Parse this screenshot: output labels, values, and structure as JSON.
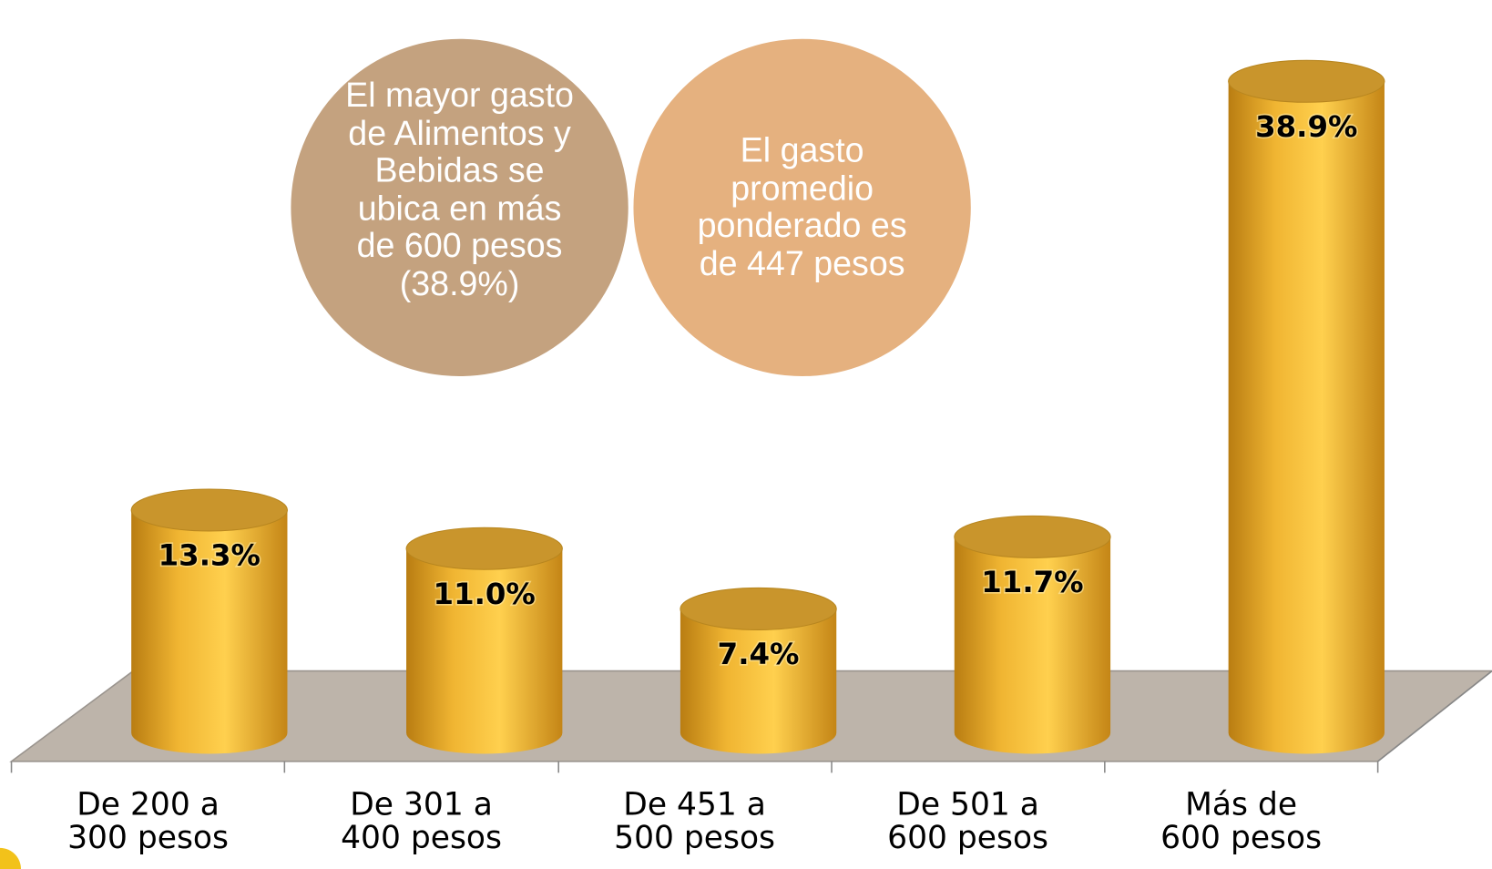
{
  "chart_data": {
    "type": "cylinder-bar",
    "categories": [
      "De 200 a 300 pesos",
      "De 301 a 400 pesos",
      "De 451 a 500 pesos",
      "De 501 a 600 pesos",
      "Más de 600 pesos"
    ],
    "values": [
      13.3,
      11.0,
      7.4,
      11.7,
      38.9
    ],
    "value_labels": [
      "13.3%",
      "11.0%",
      "7.4%",
      "11.7%",
      "38.9%"
    ],
    "color": "#f2b330",
    "annotations": [
      "El mayor gasto de Alimentos y Bebidas se ubica en más de 600 pesos (38.9%)",
      "El gasto promedio ponderado es de 447 pesos"
    ]
  }
}
